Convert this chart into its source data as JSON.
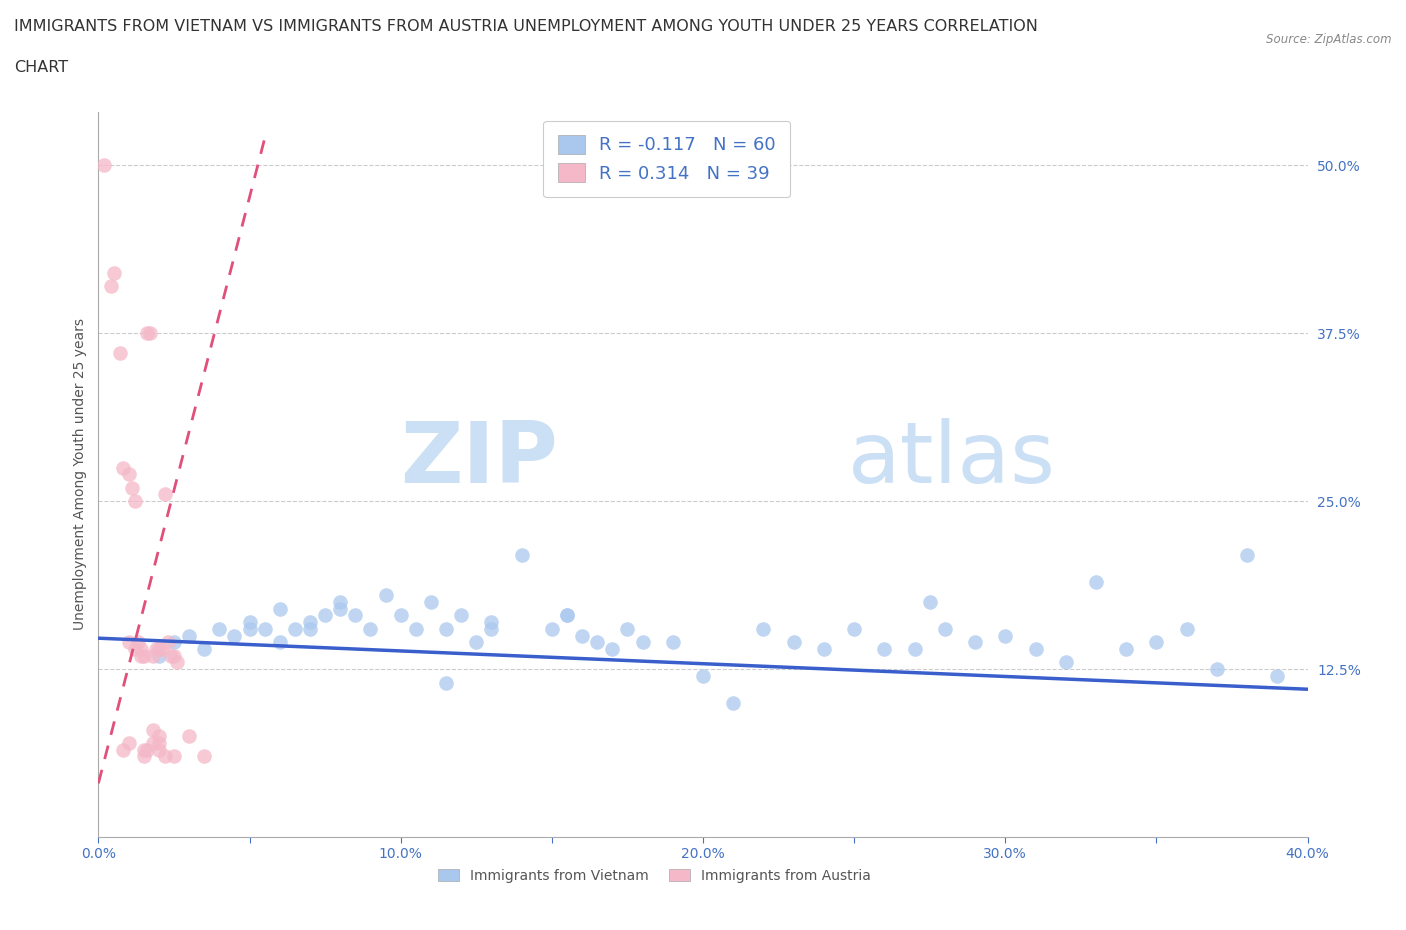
{
  "title_line1": "IMMIGRANTS FROM VIETNAM VS IMMIGRANTS FROM AUSTRIA UNEMPLOYMENT AMONG YOUTH UNDER 25 YEARS CORRELATION",
  "title_line2": "CHART",
  "source_text": "Source: ZipAtlas.com",
  "ylabel": "Unemployment Among Youth under 25 years",
  "xlim": [
    0.0,
    0.4
  ],
  "ylim": [
    0.0,
    0.54
  ],
  "xticks": [
    0.0,
    0.05,
    0.1,
    0.15,
    0.2,
    0.25,
    0.3,
    0.35,
    0.4
  ],
  "xticklabels": [
    "0.0%",
    "",
    "10.0%",
    "",
    "20.0%",
    "",
    "30.0%",
    "",
    "40.0%"
  ],
  "yticks_right": [
    0.125,
    0.25,
    0.375,
    0.5
  ],
  "yticks_right_labels": [
    "12.5%",
    "25.0%",
    "37.5%",
    "50.0%"
  ],
  "grid_color": "#cccccc",
  "grid_linestyle": "--",
  "background_color": "#ffffff",
  "watermark_text1": "ZIP",
  "watermark_text2": "atlas",
  "watermark_color": "#cce0f5",
  "legend_R1": "-0.117",
  "legend_N1": "60",
  "legend_R2": "0.314",
  "legend_N2": "39",
  "legend_label1": "Immigrants from Vietnam",
  "legend_label2": "Immigrants from Austria",
  "series1_color": "#aac8ee",
  "series2_color": "#f4b8c8",
  "trendline1_color": "#3a5fcd",
  "trendline2_color": "#e0507a",
  "series1_x": [
    0.02,
    0.025,
    0.03,
    0.035,
    0.04,
    0.045,
    0.05,
    0.055,
    0.06,
    0.065,
    0.07,
    0.075,
    0.08,
    0.085,
    0.09,
    0.095,
    0.1,
    0.105,
    0.11,
    0.115,
    0.12,
    0.125,
    0.13,
    0.14,
    0.15,
    0.155,
    0.16,
    0.165,
    0.17,
    0.175,
    0.18,
    0.19,
    0.2,
    0.21,
    0.22,
    0.23,
    0.24,
    0.25,
    0.26,
    0.27,
    0.275,
    0.28,
    0.29,
    0.3,
    0.31,
    0.32,
    0.33,
    0.34,
    0.35,
    0.36,
    0.37,
    0.38,
    0.39,
    0.05,
    0.06,
    0.07,
    0.08,
    0.115,
    0.13,
    0.155
  ],
  "series1_y": [
    0.135,
    0.145,
    0.15,
    0.14,
    0.155,
    0.15,
    0.16,
    0.155,
    0.17,
    0.155,
    0.16,
    0.165,
    0.175,
    0.165,
    0.155,
    0.18,
    0.165,
    0.155,
    0.175,
    0.155,
    0.165,
    0.145,
    0.16,
    0.21,
    0.155,
    0.165,
    0.15,
    0.145,
    0.14,
    0.155,
    0.145,
    0.145,
    0.12,
    0.1,
    0.155,
    0.145,
    0.14,
    0.155,
    0.14,
    0.14,
    0.175,
    0.155,
    0.145,
    0.15,
    0.14,
    0.13,
    0.19,
    0.14,
    0.145,
    0.155,
    0.125,
    0.21,
    0.12,
    0.155,
    0.145,
    0.155,
    0.17,
    0.115,
    0.155,
    0.165
  ],
  "series2_x": [
    0.002,
    0.004,
    0.005,
    0.007,
    0.008,
    0.01,
    0.011,
    0.012,
    0.013,
    0.014,
    0.015,
    0.016,
    0.017,
    0.018,
    0.019,
    0.02,
    0.021,
    0.022,
    0.023,
    0.024,
    0.025,
    0.026,
    0.01,
    0.012,
    0.014,
    0.015,
    0.016,
    0.018,
    0.02,
    0.022,
    0.018,
    0.02,
    0.008,
    0.01,
    0.015,
    0.02,
    0.025,
    0.03,
    0.035
  ],
  "series2_y": [
    0.5,
    0.41,
    0.42,
    0.36,
    0.275,
    0.27,
    0.26,
    0.25,
    0.145,
    0.14,
    0.135,
    0.375,
    0.375,
    0.135,
    0.14,
    0.14,
    0.14,
    0.255,
    0.145,
    0.135,
    0.135,
    0.13,
    0.145,
    0.14,
    0.135,
    0.06,
    0.065,
    0.07,
    0.065,
    0.06,
    0.08,
    0.075,
    0.065,
    0.07,
    0.065,
    0.07,
    0.06,
    0.075,
    0.06
  ],
  "title_fontsize": 11.5,
  "label_fontsize": 10,
  "tick_fontsize": 10,
  "legend_fontsize": 13,
  "axis_color": "#4472c4"
}
